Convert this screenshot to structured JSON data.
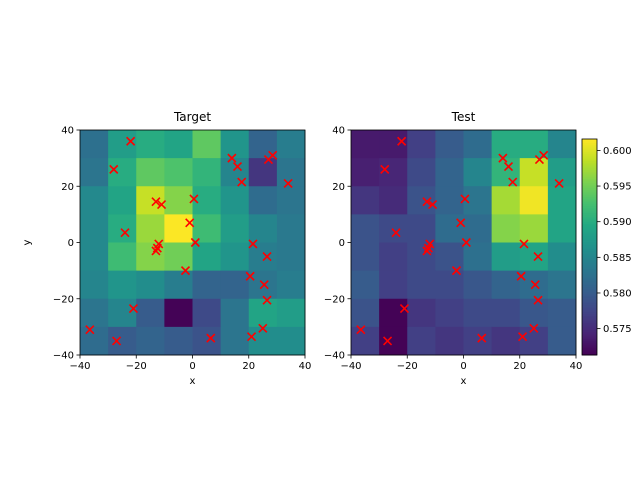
{
  "chart_data": {
    "type": "heatmap",
    "colormap": "viridis",
    "colorbar": {
      "range": [
        0.5713,
        0.6016
      ],
      "ticks": [
        0.575,
        0.58,
        0.585,
        0.59,
        0.595,
        0.6
      ],
      "tick_labels": [
        "0.575",
        "0.580",
        "0.585",
        "0.590",
        "0.595",
        "0.600"
      ]
    },
    "grid_extent": {
      "x": [
        -40,
        40
      ],
      "y": [
        -40,
        40
      ],
      "cells": 8
    },
    "marker": {
      "symbol": "x",
      "color": "#ff0000"
    },
    "points": [
      [
        -22,
        36
      ],
      [
        -28,
        26
      ],
      [
        -13,
        14.5
      ],
      [
        -11,
        13.5
      ],
      [
        -24,
        3.5
      ],
      [
        -12,
        -0.5
      ],
      [
        -12.5,
        -2
      ],
      [
        -13,
        -3
      ],
      [
        -2.5,
        -10
      ],
      [
        -36.5,
        -31
      ],
      [
        -27,
        -35
      ],
      [
        -21,
        -23.5
      ],
      [
        -1,
        7
      ],
      [
        0.5,
        15.5
      ],
      [
        1,
        0
      ],
      [
        14,
        30
      ],
      [
        16,
        27
      ],
      [
        17.5,
        21.5
      ],
      [
        34,
        21
      ],
      [
        27,
        29.5
      ],
      [
        28.5,
        31
      ],
      [
        21.5,
        -0.5
      ],
      [
        26.5,
        -5
      ],
      [
        20.5,
        -12
      ],
      [
        25.5,
        -15
      ],
      [
        26.5,
        -20.5
      ],
      [
        25,
        -30.5
      ],
      [
        21,
        -33.5
      ],
      [
        6.5,
        -34
      ]
    ],
    "panels": [
      {
        "title": "Target",
        "xlabel": "x",
        "ylabel": "y",
        "xlim": [
          -40,
          40
        ],
        "ylim": [
          -40,
          40
        ],
        "xticks": [
          -40,
          -20,
          0,
          20,
          40
        ],
        "yticks": [
          -40,
          -20,
          0,
          20,
          40
        ],
        "xtick_labels": [
          "−40",
          "−20",
          "0",
          "20",
          "40"
        ],
        "ytick_labels": [
          "−40",
          "−20",
          "0",
          "20",
          "40"
        ],
        "values_top_to_bottom": [
          [
            0.5825,
            0.588,
            0.59,
            0.589,
            0.594,
            0.587,
            0.581,
            0.584
          ],
          [
            0.583,
            0.59,
            0.594,
            0.593,
            0.591,
            0.585,
            0.576,
            0.583
          ],
          [
            0.5855,
            0.589,
            0.599,
            0.596,
            0.59,
            0.587,
            0.582,
            0.583
          ],
          [
            0.5855,
            0.59,
            0.597,
            0.6015,
            0.592,
            0.588,
            0.585,
            0.5835
          ],
          [
            0.5855,
            0.592,
            0.596,
            0.595,
            0.589,
            0.587,
            0.584,
            0.5835
          ],
          [
            0.585,
            0.587,
            0.586,
            0.584,
            0.581,
            0.581,
            0.583,
            0.584
          ],
          [
            0.583,
            0.585,
            0.58,
            0.5715,
            0.578,
            0.583,
            0.589,
            0.588
          ],
          [
            0.582,
            0.58,
            0.581,
            0.58,
            0.579,
            0.583,
            0.586,
            0.586
          ]
        ]
      },
      {
        "title": "Test",
        "xlabel": "x",
        "ylabel": "",
        "xlim": [
          -40,
          40
        ],
        "ylim": [
          -40,
          40
        ],
        "xticks": [
          -40,
          -20,
          0,
          20,
          40
        ],
        "yticks": [
          -40,
          -20,
          0,
          20,
          40
        ],
        "xtick_labels": [
          "−40",
          "−20",
          "0",
          "20",
          "40"
        ],
        "ytick_labels": [
          "−40",
          "−20",
          "0",
          "20",
          "40"
        ],
        "values_top_to_bottom": [
          [
            0.5735,
            0.5735,
            0.577,
            0.58,
            0.582,
            0.59,
            0.59,
            0.585
          ],
          [
            0.574,
            0.5745,
            0.578,
            0.581,
            0.585,
            0.591,
            0.599,
            0.588
          ],
          [
            0.576,
            0.575,
            0.579,
            0.581,
            0.583,
            0.5975,
            0.601,
            0.589
          ],
          [
            0.579,
            0.578,
            0.578,
            0.582,
            0.582,
            0.596,
            0.597,
            0.589
          ],
          [
            0.579,
            0.577,
            0.578,
            0.579,
            0.5825,
            0.588,
            0.589,
            0.586
          ],
          [
            0.58,
            0.577,
            0.578,
            0.578,
            0.5795,
            0.581,
            0.582,
            0.583
          ],
          [
            0.579,
            0.5715,
            0.576,
            0.577,
            0.578,
            0.578,
            0.5795,
            0.58
          ],
          [
            0.577,
            0.5715,
            0.577,
            0.576,
            0.577,
            0.576,
            0.577,
            0.58
          ]
        ]
      }
    ]
  }
}
